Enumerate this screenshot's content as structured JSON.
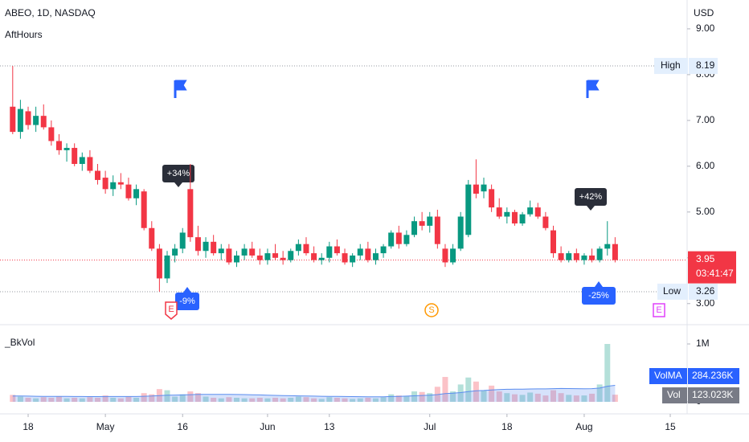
{
  "chart_data": {
    "type": "candlestick",
    "title": "ABEO, 1D, NASDAQ",
    "indicator_top": "AftHours",
    "indicator_bottom": "_BkVol",
    "currency": "USD",
    "categories": [
      "Apr 13",
      "Apr 14",
      "Apr 18",
      "Apr 19",
      "Apr 20",
      "Apr 21",
      "Apr 22",
      "Apr 25",
      "Apr 26",
      "Apr 27",
      "Apr 28",
      "Apr 29",
      "May 2",
      "May 3",
      "May 4",
      "May 5",
      "May 6",
      "May 9",
      "May 10",
      "May 11",
      "May 12",
      "May 13",
      "May 16",
      "May 17",
      "May 18",
      "May 19",
      "May 20",
      "May 23",
      "May 24",
      "May 25",
      "May 26",
      "May 27",
      "May 31",
      "Jun 1",
      "Jun 2",
      "Jun 3",
      "Jun 6",
      "Jun 7",
      "Jun 8",
      "Jun 9",
      "Jun 10",
      "Jun 13",
      "Jun 14",
      "Jun 15",
      "Jun 16",
      "Jun 17",
      "Jun 21",
      "Jun 22",
      "Jun 23",
      "Jun 24",
      "Jun 27",
      "Jun 28",
      "Jun 29",
      "Jun 30",
      "Jul 1",
      "Jul 5",
      "Jul 6",
      "Jul 7",
      "Jul 8",
      "Jul 11",
      "Jul 12",
      "Jul 13",
      "Jul 14",
      "Jul 15",
      "Jul 18",
      "Jul 19",
      "Jul 20",
      "Jul 21",
      "Jul 22",
      "Jul 25",
      "Jul 26",
      "Jul 27",
      "Jul 28",
      "Jul 29",
      "Aug 1",
      "Aug 2",
      "Aug 3",
      "Aug 4",
      "Aug 5"
    ],
    "open": [
      7.3,
      6.75,
      7.2,
      6.9,
      7.1,
      6.85,
      6.55,
      6.35,
      6.4,
      6.05,
      6.2,
      5.9,
      5.75,
      5.5,
      5.65,
      5.6,
      5.3,
      5.45,
      4.65,
      4.2,
      3.55,
      4.05,
      4.2,
      5.5,
      4.45,
      4.15,
      4.35,
      4.1,
      4.2,
      3.9,
      4.05,
      4.2,
      4.05,
      3.95,
      4.1,
      4.0,
      3.95,
      4.15,
      4.3,
      4.1,
      3.95,
      4.0,
      4.25,
      4.1,
      3.9,
      4.05,
      4.2,
      3.95,
      4.1,
      4.25,
      4.55,
      4.3,
      4.5,
      4.8,
      4.7,
      4.9,
      4.2,
      3.9,
      4.2,
      4.5,
      5.6,
      5.45,
      5.5,
      5.1,
      4.9,
      5.0,
      4.75,
      4.95,
      5.1,
      4.9,
      4.6,
      4.1,
      3.95,
      4.1,
      3.95,
      4.05,
      3.95,
      4.2,
      4.3
    ],
    "high": [
      8.19,
      7.45,
      7.3,
      7.3,
      7.35,
      7.0,
      6.7,
      6.5,
      6.5,
      6.3,
      6.35,
      6.05,
      5.9,
      5.8,
      5.85,
      5.75,
      5.6,
      5.5,
      4.8,
      4.3,
      4.15,
      4.3,
      4.65,
      6.05,
      4.7,
      4.45,
      4.5,
      4.3,
      4.3,
      4.15,
      4.3,
      4.35,
      4.2,
      4.2,
      4.3,
      4.15,
      4.2,
      4.4,
      4.45,
      4.25,
      4.1,
      4.35,
      4.4,
      4.2,
      4.1,
      4.3,
      4.35,
      4.2,
      4.3,
      4.6,
      4.7,
      4.6,
      4.9,
      5.0,
      5.0,
      5.05,
      4.3,
      4.3,
      5.0,
      5.7,
      6.15,
      5.75,
      5.6,
      5.3,
      5.1,
      5.05,
      5.0,
      5.25,
      5.2,
      5.0,
      4.7,
      4.25,
      4.15,
      4.2,
      4.1,
      4.2,
      4.25,
      4.8,
      4.45
    ],
    "low": [
      6.7,
      6.6,
      6.8,
      6.75,
      6.8,
      6.45,
      6.25,
      6.1,
      6.0,
      5.9,
      5.85,
      5.6,
      5.4,
      5.35,
      5.5,
      5.25,
      5.15,
      4.6,
      4.15,
      3.26,
      3.45,
      3.9,
      4.1,
      4.35,
      4.05,
      4.0,
      4.05,
      3.95,
      3.85,
      3.8,
      3.95,
      4.0,
      3.85,
      3.85,
      3.95,
      3.85,
      3.9,
      4.05,
      4.05,
      3.9,
      3.85,
      3.9,
      4.05,
      3.85,
      3.8,
      3.95,
      3.9,
      3.85,
      4.0,
      4.2,
      4.2,
      4.25,
      4.45,
      4.6,
      4.55,
      4.2,
      3.8,
      3.85,
      4.15,
      4.45,
      5.3,
      5.3,
      5.0,
      4.85,
      4.75,
      4.7,
      4.7,
      4.9,
      4.85,
      4.6,
      4.0,
      3.9,
      3.9,
      3.9,
      3.85,
      3.9,
      3.9,
      4.05,
      3.9
    ],
    "close": [
      6.75,
      7.25,
      6.9,
      7.1,
      6.85,
      6.55,
      6.35,
      6.4,
      6.05,
      6.2,
      5.9,
      5.7,
      5.5,
      5.65,
      5.6,
      5.3,
      5.5,
      4.65,
      4.2,
      3.55,
      4.05,
      4.2,
      4.55,
      4.45,
      4.15,
      4.35,
      4.1,
      4.2,
      3.9,
      4.05,
      4.2,
      4.05,
      3.95,
      4.1,
      4.0,
      3.95,
      4.15,
      4.3,
      4.1,
      3.95,
      4.0,
      4.25,
      4.1,
      3.9,
      4.05,
      4.2,
      3.95,
      4.1,
      4.25,
      4.55,
      4.3,
      4.5,
      4.8,
      4.7,
      4.9,
      4.3,
      3.9,
      4.2,
      4.9,
      5.6,
      5.4,
      5.6,
      5.1,
      4.9,
      5.0,
      4.75,
      4.95,
      5.1,
      4.9,
      4.65,
      4.1,
      3.95,
      4.1,
      3.95,
      4.05,
      3.95,
      4.2,
      4.3,
      3.95
    ],
    "volume": [
      120000,
      90000,
      70000,
      60000,
      80000,
      70000,
      90000,
      60000,
      70000,
      60000,
      80000,
      70000,
      110000,
      70000,
      60000,
      90000,
      70000,
      150000,
      130000,
      220000,
      200000,
      90000,
      130000,
      180000,
      150000,
      90000,
      70000,
      60000,
      80000,
      70000,
      60000,
      60000,
      70000,
      60000,
      70000,
      60000,
      70000,
      90000,
      80000,
      60000,
      50000,
      80000,
      70000,
      60000,
      50000,
      60000,
      70000,
      60000,
      80000,
      130000,
      110000,
      100000,
      180000,
      170000,
      150000,
      260000,
      430000,
      180000,
      300000,
      420000,
      350000,
      200000,
      280000,
      180000,
      150000,
      130000,
      120000,
      160000,
      140000,
      110000,
      200000,
      150000,
      120000,
      110000,
      110000,
      140000,
      300000,
      1000000,
      123023
    ],
    "vol_ma": [
      100000,
      100000,
      98000,
      96000,
      95000,
      94000,
      94000,
      93000,
      92000,
      91000,
      90000,
      90000,
      92000,
      92000,
      91000,
      92000,
      92000,
      96000,
      100000,
      108000,
      115000,
      116000,
      119000,
      124000,
      128000,
      129000,
      129000,
      128000,
      128000,
      127000,
      125000,
      122000,
      119000,
      115000,
      111000,
      108000,
      105000,
      103000,
      100000,
      98000,
      96000,
      95000,
      94000,
      92000,
      90000,
      89000,
      88000,
      87000,
      88000,
      92000,
      95000,
      98000,
      104000,
      110000,
      115000,
      125000,
      142000,
      148000,
      160000,
      176000,
      190000,
      196000,
      206000,
      212000,
      216000,
      218000,
      219000,
      222000,
      224000,
      223000,
      228000,
      230000,
      229000,
      228000,
      226000,
      228000,
      238000,
      270000,
      284236
    ],
    "up_color": "#089981",
    "down_color": "#f23645",
    "ma_color": "#5b8def",
    "ylim": [
      2.61,
      9.63
    ],
    "yticks": [
      {
        "value": 3,
        "label": "3.00"
      },
      {
        "value": 4,
        "label": "4.00"
      },
      {
        "value": 5,
        "label": "5.00"
      },
      {
        "value": 6,
        "label": "6.00"
      },
      {
        "value": 7,
        "label": "7.00"
      },
      {
        "value": 8,
        "label": "8.00"
      },
      {
        "value": 9,
        "label": "9.00"
      }
    ],
    "vol_ylim": [
      0,
      1000000
    ],
    "vol_yticks": [
      {
        "value": 1000000,
        "label": "1M"
      },
      0
    ],
    "xticks": [
      {
        "value": "Apr 18",
        "label": "18"
      },
      {
        "value": "May 2",
        "label": "May"
      },
      {
        "value": "May 16",
        "label": "16"
      },
      {
        "value": "Jun 1",
        "label": "Jun"
      },
      {
        "value": "Jun 13",
        "label": "13"
      },
      {
        "value": "Jul 1",
        "label": "Jul"
      },
      {
        "value": "Jul 18",
        "label": "18"
      },
      {
        "value": "Aug 1",
        "label": "Aug"
      },
      {
        "value": "Aug 15",
        "label": "15"
      }
    ],
    "high_marker": {
      "label": "High",
      "value": 8.19
    },
    "low_marker": {
      "label": "Low",
      "value": 3.26
    },
    "last_price": 3.95,
    "countdown": "03:41:47",
    "vol_ma_label": {
      "name": "VolMA",
      "value": 284236,
      "label": "284.236K"
    },
    "vol_label": {
      "name": "Vol",
      "value": 123023,
      "label": "123.023K"
    },
    "change_labels": [
      "+34%",
      "+42%",
      "-9%",
      "-25%"
    ],
    "events": [
      "E",
      "S",
      "E"
    ]
  }
}
